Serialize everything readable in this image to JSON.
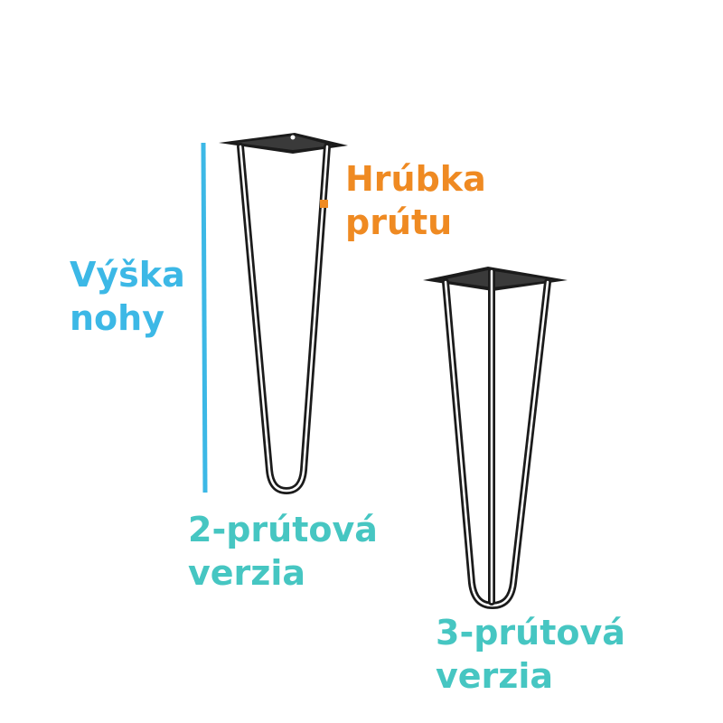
{
  "labels": {
    "height": {
      "line1": "Výška",
      "line2": "nohy"
    },
    "thickness": {
      "line1": "Hrúbka",
      "line2": "prútu"
    },
    "version_2": {
      "line1": "2-prútová",
      "line2": "verzia"
    },
    "version_3": {
      "line1": "3-prútová",
      "line2": "verzia"
    }
  },
  "colors": {
    "height_accent": "#3cb8e6",
    "thickness_accent": "#ef8a22",
    "version_accent": "#46c6c2",
    "leg_metal": "#1b1b1b"
  },
  "icons": {
    "leg_2_rod": "hairpin-leg-2-rod-icon",
    "leg_3_rod": "hairpin-leg-3-rod-icon",
    "height_marker": "height-measure-line",
    "thickness_marker": "rod-thickness-marker"
  }
}
